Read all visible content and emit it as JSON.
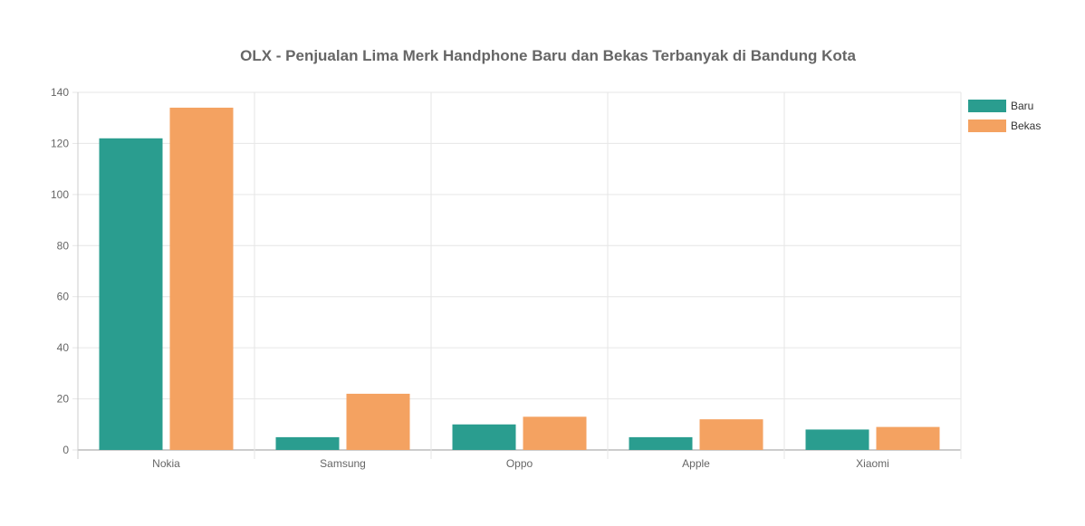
{
  "chart_data": {
    "type": "bar",
    "title": "OLX - Penjualan Lima Merk Handphone Baru dan Bekas Terbanyak di Bandung Kota",
    "xlabel": "",
    "ylabel": "",
    "categories": [
      "Nokia",
      "Samsung",
      "Oppo",
      "Apple",
      "Xiaomi"
    ],
    "series": [
      {
        "name": "Baru",
        "color": "#2a9d8f",
        "values": [
          122,
          5,
          10,
          5,
          8
        ]
      },
      {
        "name": "Bekas",
        "color": "#f4a261",
        "values": [
          134,
          22,
          13,
          12,
          9
        ]
      }
    ],
    "ylim": [
      0,
      140
    ],
    "yticks": [
      "0",
      "20",
      "40",
      "60",
      "80",
      "100",
      "120",
      "140"
    ],
    "grid": true,
    "legend_position": "right"
  }
}
